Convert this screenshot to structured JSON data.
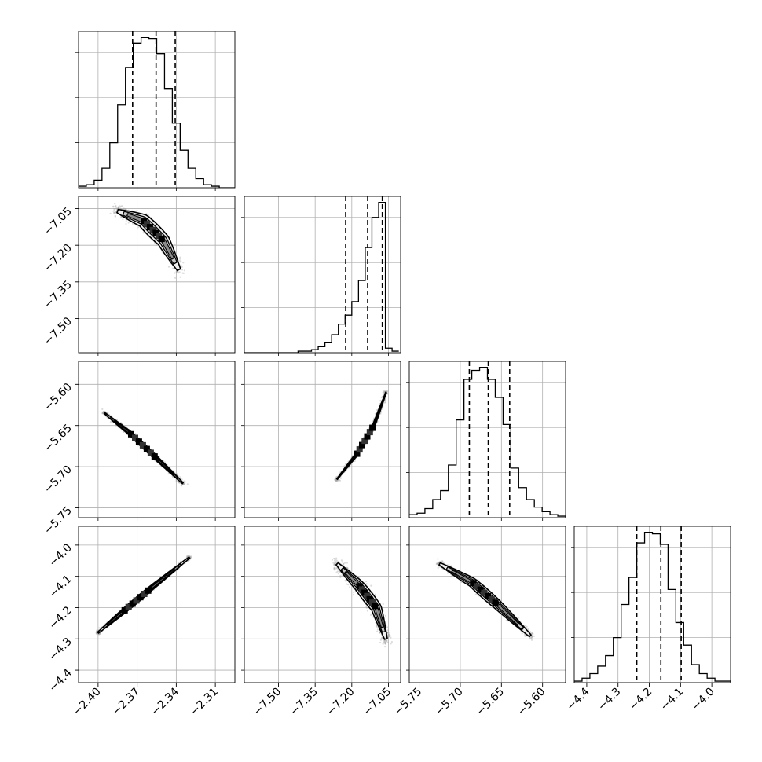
{
  "chart_data": {
    "type": "corner",
    "title": "",
    "grid": true,
    "variables": [
      {
        "ticks": [
          -2.4,
          -2.37,
          -2.34,
          -2.31
        ],
        "tick_labels": [
          "−2.40",
          "−2.37",
          "−2.34",
          "−2.31"
        ],
        "range": [
          -2.415,
          -2.295
        ],
        "quantiles": [
          -2.3735,
          -2.3555,
          -2.3408
        ]
      },
      {
        "ticks": [
          -7.5,
          -7.35,
          -7.2,
          -7.05
        ],
        "tick_labels": [
          "−7.50",
          "−7.35",
          "−7.20",
          "−7.05"
        ],
        "range": [
          -7.64,
          -7.0
        ],
        "quantiles": [
          -7.225,
          -7.135,
          -7.075
        ]
      },
      {
        "ticks": [
          -5.75,
          -5.7,
          -5.65,
          -5.6
        ],
        "tick_labels": [
          "−5.75",
          "−5.70",
          "−5.65",
          "−5.60"
        ],
        "range": [
          -5.762,
          -5.572
        ],
        "quantiles": [
          -5.689,
          -5.666,
          -5.64
        ]
      },
      {
        "ticks": [
          -4.4,
          -4.3,
          -4.2,
          -4.1,
          -4.0
        ],
        "tick_labels": [
          "−4.4",
          "−4.3",
          "−4.2",
          "−4.1",
          "−4.0"
        ],
        "range": [
          -4.44,
          -3.94
        ],
        "quantiles": [
          -4.24,
          -4.163,
          -4.098
        ]
      }
    ],
    "histograms": [
      {
        "counts": [
          1,
          2,
          5,
          13,
          30,
          55,
          80,
          96,
          100,
          99,
          89,
          66,
          43,
          25,
          13,
          6,
          2,
          1,
          0,
          0
        ],
        "ymax": 104
      },
      {
        "counts": [
          0,
          0,
          0,
          0,
          0,
          0,
          0,
          0,
          1,
          1,
          2,
          4,
          7,
          12,
          19,
          25,
          34,
          48,
          70,
          90,
          100,
          3,
          1
        ],
        "edge_start": -7.64,
        "edge_step": 0.0275,
        "ymax": 104
      },
      {
        "counts": [
          2,
          3,
          6,
          12,
          18,
          35,
          65,
          92,
          98,
          100,
          92,
          80,
          62,
          33,
          20,
          12,
          7,
          4,
          2,
          1
        ],
        "ymax": 104
      },
      {
        "counts": [
          1,
          3,
          6,
          11,
          18,
          30,
          52,
          70,
          93,
          100,
          99,
          92,
          62,
          40,
          25,
          12,
          6,
          3,
          1,
          1
        ],
        "ymax": 104
      }
    ],
    "pairs": [
      {
        "x": 0,
        "y": 1,
        "mode": {
          "x": -2.38,
          "y": -7.07
        },
        "curve": [
          [
            -2.385,
            -7.06
          ],
          [
            -2.365,
            -7.1
          ],
          [
            -2.35,
            -7.18
          ],
          [
            -2.338,
            -7.3
          ]
        ],
        "spread": 0.05,
        "scatter_sd": 0.03
      },
      {
        "x": 0,
        "y": 2,
        "mode": {
          "x": -2.372,
          "y": -5.665
        },
        "curve": [
          [
            -2.395,
            -5.635
          ],
          [
            -2.375,
            -5.66
          ],
          [
            -2.355,
            -5.69
          ],
          [
            -2.335,
            -5.72
          ]
        ],
        "spread": 0.015,
        "scatter_sd": 0.012
      },
      {
        "x": 0,
        "y": 3,
        "mode": {
          "x": -2.368,
          "y": -4.17
        },
        "curve": [
          [
            -2.4,
            -4.28
          ],
          [
            -2.38,
            -4.21
          ],
          [
            -2.36,
            -4.14
          ],
          [
            -2.33,
            -4.04
          ]
        ],
        "spread": 0.018,
        "scatter_sd": 0.01
      },
      {
        "x": 1,
        "y": 2,
        "mode": {
          "x": -7.12,
          "y": -5.665
        },
        "curve": [
          [
            -7.26,
            -5.715
          ],
          [
            -7.18,
            -5.685
          ],
          [
            -7.11,
            -5.65
          ],
          [
            -7.06,
            -5.61
          ]
        ],
        "spread": 0.01,
        "scatter_sd": 0.01
      },
      {
        "x": 1,
        "y": 3,
        "mode": {
          "x": -7.14,
          "y": -4.18
        },
        "curve": [
          [
            -7.26,
            -4.06
          ],
          [
            -7.17,
            -4.13
          ],
          [
            -7.1,
            -4.2
          ],
          [
            -7.06,
            -4.3
          ]
        ],
        "spread": 0.04,
        "scatter_sd": 0.03
      },
      {
        "x": 2,
        "y": 3,
        "mode": {
          "x": -5.665,
          "y": -4.16
        },
        "curve": [
          [
            -5.725,
            -4.06
          ],
          [
            -5.685,
            -4.12
          ],
          [
            -5.655,
            -4.19
          ],
          [
            -5.615,
            -4.29
          ]
        ],
        "spread": 0.035,
        "scatter_sd": 0.02
      }
    ]
  }
}
